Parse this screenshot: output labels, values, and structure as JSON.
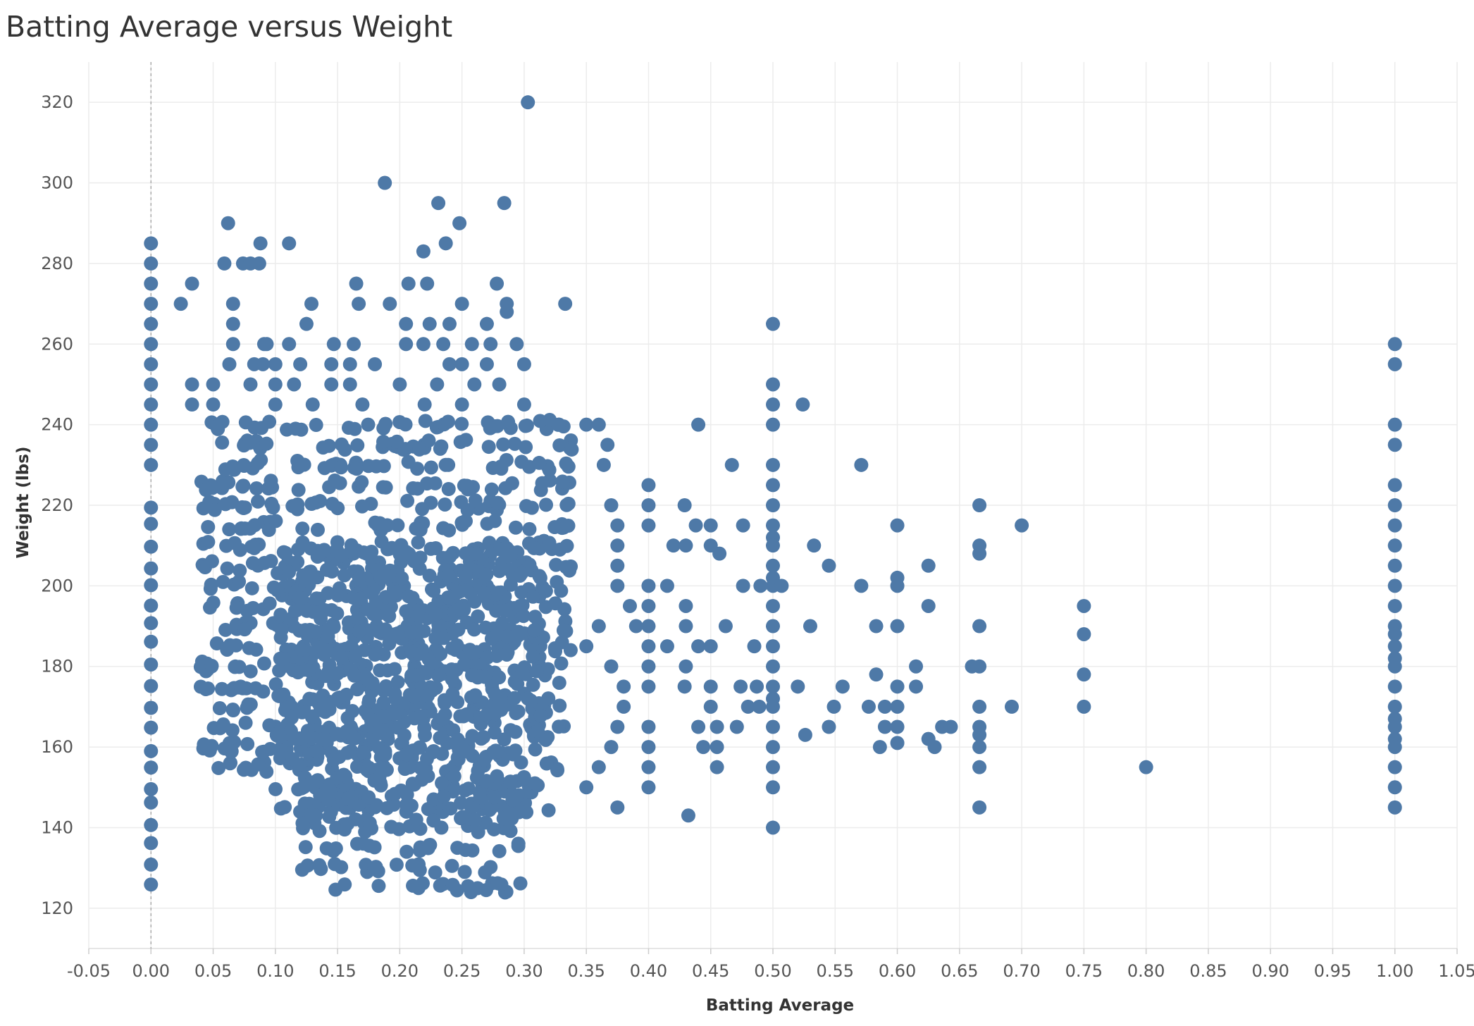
{
  "chart_data": {
    "type": "scatter",
    "title": "Batting Average versus Weight",
    "xlabel": "Batting Average",
    "ylabel": "Weight (lbs)",
    "xlim": [
      -0.05,
      1.05
    ],
    "ylim": [
      110,
      330
    ],
    "x_ticks": [
      "-0.05",
      "0.00",
      "0.05",
      "0.10",
      "0.15",
      "0.20",
      "0.25",
      "0.30",
      "0.35",
      "0.40",
      "0.45",
      "0.50",
      "0.55",
      "0.60",
      "0.65",
      "0.70",
      "0.75",
      "0.80",
      "0.85",
      "0.90",
      "0.95",
      "1.00",
      "1.05"
    ],
    "y_ticks": [
      "120",
      "140",
      "160",
      "180",
      "200",
      "220",
      "240",
      "260",
      "280",
      "300",
      "320"
    ],
    "grid": true,
    "marker_color": "#4e79a7",
    "points": [
      [
        0.303,
        320
      ],
      [
        0.188,
        300
      ],
      [
        0.231,
        295
      ],
      [
        0.284,
        295
      ],
      [
        0.062,
        290
      ],
      [
        0.248,
        290
      ],
      [
        0.111,
        285
      ],
      [
        0.088,
        285
      ],
      [
        0.237,
        285
      ],
      [
        0.0,
        285
      ],
      [
        0.219,
        283
      ],
      [
        0.059,
        280
      ],
      [
        0.074,
        280
      ],
      [
        0.08,
        280
      ],
      [
        0.087,
        280
      ],
      [
        0.0,
        280
      ],
      [
        0.033,
        275
      ],
      [
        0.207,
        275
      ],
      [
        0.222,
        275
      ],
      [
        0.278,
        275
      ],
      [
        0.165,
        275
      ],
      [
        0.0,
        275
      ],
      [
        0.024,
        270
      ],
      [
        0.066,
        270
      ],
      [
        0.129,
        270
      ],
      [
        0.167,
        270
      ],
      [
        0.192,
        270
      ],
      [
        0.25,
        270
      ],
      [
        0.286,
        270
      ],
      [
        0.286,
        268
      ],
      [
        0.333,
        270
      ],
      [
        0.0,
        270
      ],
      [
        0.5,
        265
      ],
      [
        0.0,
        265
      ],
      [
        0.066,
        265
      ],
      [
        0.125,
        265
      ],
      [
        0.205,
        265
      ],
      [
        0.224,
        265
      ],
      [
        0.24,
        265
      ],
      [
        0.27,
        265
      ],
      [
        1.0,
        260
      ],
      [
        1.0,
        255
      ],
      [
        0.0,
        260
      ],
      [
        0.066,
        260
      ],
      [
        0.091,
        260
      ],
      [
        0.093,
        260
      ],
      [
        0.111,
        260
      ],
      [
        0.147,
        260
      ],
      [
        0.163,
        260
      ],
      [
        0.205,
        260
      ],
      [
        0.219,
        260
      ],
      [
        0.235,
        260
      ],
      [
        0.258,
        260
      ],
      [
        0.273,
        260
      ],
      [
        0.294,
        260
      ],
      [
        0.0,
        255
      ],
      [
        0.063,
        255
      ],
      [
        0.083,
        255
      ],
      [
        0.09,
        255
      ],
      [
        0.1,
        255
      ],
      [
        0.12,
        255
      ],
      [
        0.145,
        255
      ],
      [
        0.16,
        255
      ],
      [
        0.18,
        255
      ],
      [
        0.24,
        255
      ],
      [
        0.25,
        255
      ],
      [
        0.27,
        255
      ],
      [
        0.3,
        255
      ],
      [
        0.0,
        250
      ],
      [
        0.033,
        250
      ],
      [
        0.05,
        250
      ],
      [
        0.08,
        250
      ],
      [
        0.1,
        250
      ],
      [
        0.115,
        250
      ],
      [
        0.145,
        250
      ],
      [
        0.16,
        250
      ],
      [
        0.2,
        250
      ],
      [
        0.23,
        250
      ],
      [
        0.26,
        250
      ],
      [
        0.28,
        250
      ],
      [
        0.5,
        250
      ],
      [
        0.0,
        245
      ],
      [
        0.033,
        245
      ],
      [
        0.05,
        245
      ],
      [
        0.1,
        245
      ],
      [
        0.13,
        245
      ],
      [
        0.17,
        245
      ],
      [
        0.22,
        245
      ],
      [
        0.25,
        245
      ],
      [
        0.3,
        245
      ],
      [
        0.5,
        245
      ],
      [
        0.524,
        245
      ],
      [
        1.0,
        240
      ],
      [
        1.0,
        235
      ],
      [
        0.44,
        240
      ],
      [
        0.5,
        240
      ],
      [
        0.35,
        240
      ],
      [
        0.36,
        240
      ],
      [
        0.367,
        235
      ],
      [
        0.364,
        230
      ],
      [
        0.5,
        230
      ],
      [
        0.467,
        230
      ],
      [
        0.571,
        230
      ],
      [
        0.0,
        240
      ],
      [
        0.0,
        235
      ],
      [
        0.0,
        230
      ],
      [
        1.0,
        225
      ],
      [
        1.0,
        220
      ],
      [
        1.0,
        215
      ],
      [
        1.0,
        210
      ],
      [
        1.0,
        205
      ],
      [
        1.0,
        200
      ],
      [
        1.0,
        195
      ],
      [
        1.0,
        190
      ],
      [
        1.0,
        188
      ],
      [
        1.0,
        185
      ],
      [
        1.0,
        182
      ],
      [
        1.0,
        180
      ],
      [
        1.0,
        175
      ],
      [
        1.0,
        170
      ],
      [
        1.0,
        167
      ],
      [
        1.0,
        165
      ],
      [
        1.0,
        162
      ],
      [
        1.0,
        160
      ],
      [
        1.0,
        155
      ],
      [
        1.0,
        150
      ],
      [
        1.0,
        145
      ],
      [
        0.5,
        225
      ],
      [
        0.5,
        220
      ],
      [
        0.5,
        215
      ],
      [
        0.5,
        212
      ],
      [
        0.5,
        210
      ],
      [
        0.5,
        205
      ],
      [
        0.5,
        202
      ],
      [
        0.5,
        200
      ],
      [
        0.5,
        195
      ],
      [
        0.5,
        190
      ],
      [
        0.5,
        185
      ],
      [
        0.5,
        180
      ],
      [
        0.5,
        175
      ],
      [
        0.5,
        172
      ],
      [
        0.5,
        170
      ],
      [
        0.5,
        165
      ],
      [
        0.5,
        160
      ],
      [
        0.5,
        155
      ],
      [
        0.5,
        150
      ],
      [
        0.5,
        140
      ],
      [
        0.4,
        225
      ],
      [
        0.4,
        220
      ],
      [
        0.4,
        215
      ],
      [
        0.429,
        220
      ],
      [
        0.438,
        215
      ],
      [
        0.45,
        215
      ],
      [
        0.476,
        215
      ],
      [
        0.37,
        220
      ],
      [
        0.375,
        215
      ],
      [
        0.375,
        210
      ],
      [
        0.375,
        205
      ],
      [
        0.42,
        210
      ],
      [
        0.43,
        210
      ],
      [
        0.45,
        210
      ],
      [
        0.457,
        208
      ],
      [
        0.666,
        220
      ],
      [
        0.666,
        210
      ],
      [
        0.666,
        208
      ],
      [
        0.666,
        190
      ],
      [
        0.666,
        180
      ],
      [
        0.666,
        170
      ],
      [
        0.666,
        165
      ],
      [
        0.666,
        163
      ],
      [
        0.666,
        160
      ],
      [
        0.666,
        155
      ],
      [
        0.666,
        145
      ],
      [
        0.7,
        215
      ],
      [
        0.75,
        195
      ],
      [
        0.75,
        188
      ],
      [
        0.75,
        178
      ],
      [
        0.75,
        170
      ],
      [
        0.8,
        155
      ],
      [
        0.692,
        170
      ],
      [
        0.66,
        180
      ],
      [
        0.6,
        215
      ],
      [
        0.6,
        202
      ],
      [
        0.6,
        200
      ],
      [
        0.6,
        190
      ],
      [
        0.6,
        175
      ],
      [
        0.6,
        170
      ],
      [
        0.6,
        165
      ],
      [
        0.6,
        161
      ],
      [
        0.625,
        205
      ],
      [
        0.625,
        195
      ],
      [
        0.615,
        180
      ],
      [
        0.615,
        175
      ],
      [
        0.625,
        162
      ],
      [
        0.636,
        165
      ],
      [
        0.643,
        165
      ],
      [
        0.63,
        160
      ],
      [
        0.571,
        200
      ],
      [
        0.583,
        190
      ],
      [
        0.583,
        178
      ],
      [
        0.577,
        170
      ],
      [
        0.59,
        170
      ],
      [
        0.59,
        165
      ],
      [
        0.586,
        160
      ],
      [
        0.533,
        210
      ],
      [
        0.545,
        205
      ],
      [
        0.52,
        175
      ],
      [
        0.53,
        190
      ],
      [
        0.556,
        175
      ],
      [
        0.549,
        170
      ],
      [
        0.545,
        165
      ],
      [
        0.526,
        163
      ],
      [
        0.507,
        200
      ],
      [
        0.49,
        200
      ],
      [
        0.476,
        200
      ],
      [
        0.462,
        190
      ],
      [
        0.485,
        185
      ],
      [
        0.474,
        175
      ],
      [
        0.487,
        175
      ],
      [
        0.489,
        170
      ],
      [
        0.48,
        170
      ],
      [
        0.471,
        165
      ],
      [
        0.455,
        165
      ],
      [
        0.455,
        160
      ],
      [
        0.455,
        155
      ],
      [
        0.4,
        200
      ],
      [
        0.4,
        195
      ],
      [
        0.4,
        190
      ],
      [
        0.4,
        185
      ],
      [
        0.4,
        180
      ],
      [
        0.4,
        175
      ],
      [
        0.4,
        165
      ],
      [
        0.4,
        160
      ],
      [
        0.4,
        155
      ],
      [
        0.4,
        150
      ],
      [
        0.415,
        200
      ],
      [
        0.43,
        195
      ],
      [
        0.43,
        190
      ],
      [
        0.429,
        175
      ],
      [
        0.44,
        185
      ],
      [
        0.45,
        185
      ],
      [
        0.45,
        175
      ],
      [
        0.45,
        170
      ],
      [
        0.444,
        160
      ],
      [
        0.44,
        165
      ],
      [
        0.415,
        185
      ],
      [
        0.43,
        180
      ],
      [
        0.432,
        143
      ],
      [
        0.375,
        200
      ],
      [
        0.385,
        195
      ],
      [
        0.39,
        190
      ],
      [
        0.36,
        190
      ],
      [
        0.35,
        185
      ],
      [
        0.37,
        180
      ],
      [
        0.38,
        175
      ],
      [
        0.38,
        170
      ],
      [
        0.375,
        165
      ],
      [
        0.37,
        160
      ],
      [
        0.36,
        155
      ],
      [
        0.35,
        150
      ],
      [
        0.375,
        145
      ]
    ],
    "clusters": [
      {
        "x_range": [
          0.04,
          0.34
        ],
        "y_values": [
          155,
          160,
          165,
          170,
          175,
          180,
          185,
          190,
          195,
          200,
          205,
          210,
          215,
          220,
          225,
          230,
          235,
          240
        ],
        "per_row": 40
      },
      {
        "x_range": [
          0.1,
          0.32
        ],
        "y_values": [
          145,
          150,
          158,
          163,
          168,
          172,
          178,
          183,
          188,
          193,
          198,
          203,
          208
        ],
        "per_row": 45
      },
      {
        "x_range": [
          0.12,
          0.3
        ],
        "y_values": [
          125,
          130,
          135,
          140,
          142,
          148,
          152
        ],
        "per_row": 20
      },
      {
        "x_range": [
          0.0,
          0.005
        ],
        "y_values": [
          125,
          130,
          135,
          140,
          145,
          150,
          155,
          160,
          165,
          170,
          175,
          180,
          185,
          190,
          195,
          200,
          205,
          210,
          215,
          220
        ],
        "per_row": 1
      }
    ]
  }
}
